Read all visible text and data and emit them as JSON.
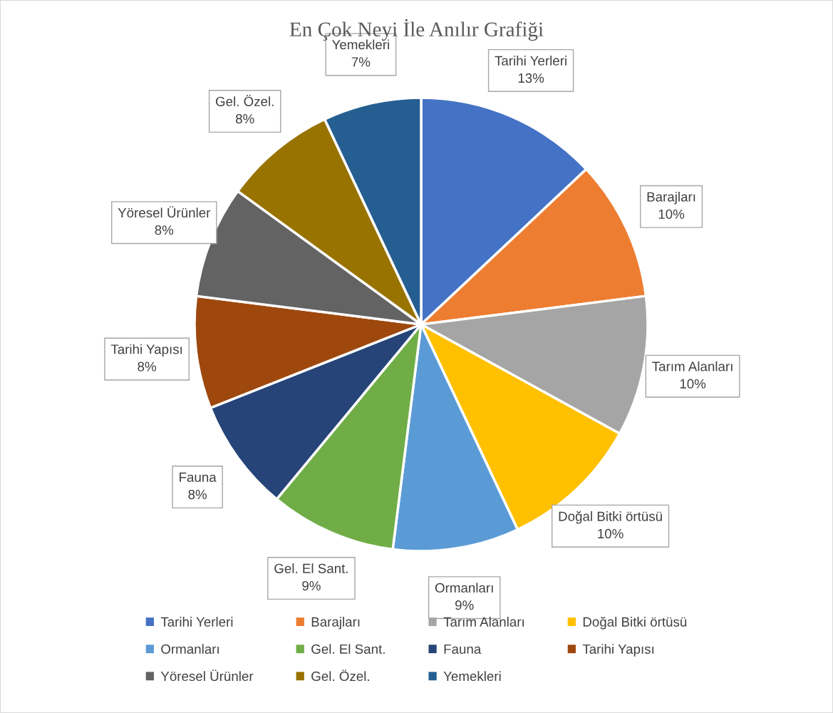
{
  "chart_data": {
    "type": "pie",
    "title": "En Çok Neyi İle Anılır Grafiği",
    "categories": [
      "Tarihi Yerleri",
      "Barajları",
      "Tarım Alanları",
      "Doğal Bitki örtüsü",
      "Ormanları",
      "Gel. El Sant.",
      "Fauna",
      "Tarihi Yapısı",
      "Yöresel Ürünler",
      "Gel. Özel.",
      "Yemekleri"
    ],
    "values": [
      13,
      10,
      10,
      10,
      9,
      9,
      8,
      8,
      8,
      8,
      7
    ],
    "value_labels": [
      "13%",
      "10%",
      "10%",
      "10%",
      "9%",
      "9%",
      "8%",
      "8%",
      "8%",
      "8%",
      "7%"
    ],
    "colors": [
      "#4472c4",
      "#ed7d31",
      "#a5a5a5",
      "#ffc000",
      "#5b9bd5",
      "#70ad47",
      "#264478",
      "#9e480e",
      "#636363",
      "#997300",
      "#255e91"
    ],
    "legend": "bottom"
  }
}
